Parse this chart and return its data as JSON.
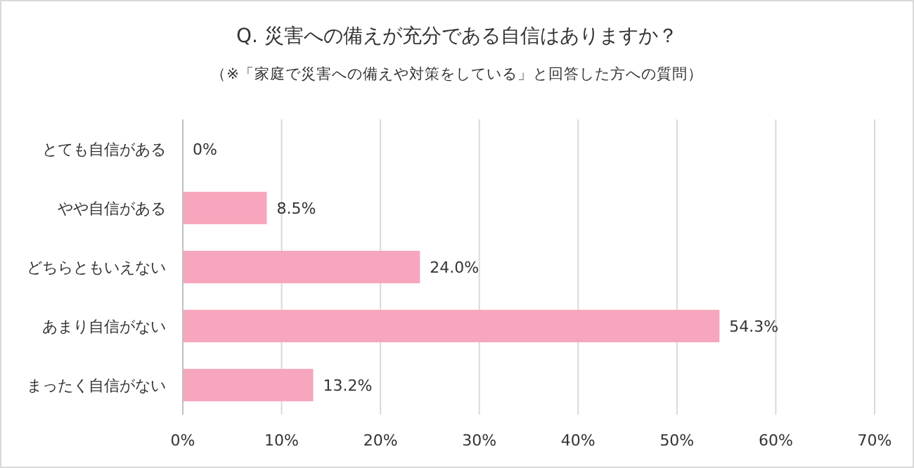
{
  "chart_data": {
    "type": "bar",
    "orientation": "horizontal",
    "title": "Q. 災害への備えが充分である自信はありますか？",
    "subtitle": "（※「家庭で災害への備えや対策をしている」と回答した方への質問）",
    "categories": [
      "とても自信がある",
      "やや自信がある",
      "どちらともいえない",
      "あまり自信がない",
      "まったく自信がない"
    ],
    "values": [
      0,
      8.5,
      24.0,
      54.3,
      13.2
    ],
    "value_labels": [
      "0%",
      "8.5%",
      "24.0%",
      "54.3%",
      "13.2%"
    ],
    "color": "#f7a7bd",
    "xlim": [
      0,
      70
    ],
    "xticks": [
      {
        "value": 0,
        "label": "0%"
      },
      {
        "value": 10,
        "label": "10%"
      },
      {
        "value": 20,
        "label": "20%"
      },
      {
        "value": 30,
        "label": "30%"
      },
      {
        "value": 40,
        "label": "40%"
      },
      {
        "value": 50,
        "label": "50%"
      },
      {
        "value": 60,
        "label": "60%"
      },
      {
        "value": 70,
        "label": "70%"
      }
    ],
    "grid": "x"
  }
}
